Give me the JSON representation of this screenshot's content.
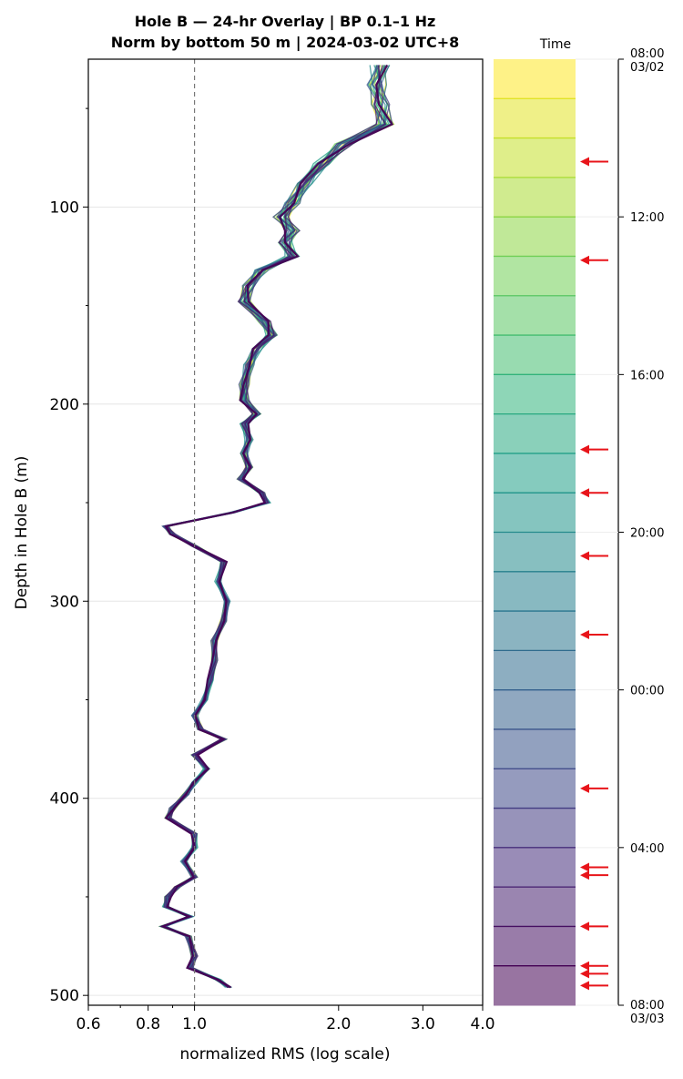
{
  "chart_data": {
    "type": "line",
    "title_line1": "Hole B — 24-hr Overlay  |  BP 0.1–1 Hz",
    "title_line2": "Norm by bottom 50 m  |  2024-03-02 UTC+8",
    "xlabel": "normalized RMS  (log scale)",
    "ylabel": "Depth in Hole B (m)",
    "x_scale": "log",
    "xlim": [
      0.6,
      4.0
    ],
    "ylim": [
      505,
      25
    ],
    "x_ticks": [
      {
        "value": 0.6,
        "label": "0.6"
      },
      {
        "value": 0.8,
        "label": "0.8"
      },
      {
        "value": 1.0,
        "label": "1.0"
      },
      {
        "value": 2.0,
        "label": "2.0"
      },
      {
        "value": 3.0,
        "label": "3.0"
      },
      {
        "value": 4.0,
        "label": "4.0"
      }
    ],
    "y_ticks": [
      {
        "value": 100,
        "label": "100"
      },
      {
        "value": 200,
        "label": "200"
      },
      {
        "value": 300,
        "label": "300"
      },
      {
        "value": 400,
        "label": "400"
      },
      {
        "value": 500,
        "label": "500"
      }
    ],
    "reference_line_x": 1.0,
    "grid": "horizontal",
    "profile_depths": [
      28,
      38,
      48,
      58,
      68,
      78,
      88,
      98,
      105,
      112,
      118,
      125,
      132,
      140,
      148,
      158,
      165,
      172,
      180,
      190,
      198,
      205,
      210,
      218,
      225,
      232,
      238,
      245,
      250,
      255,
      262,
      266,
      272,
      280,
      290,
      300,
      310,
      320,
      330,
      340,
      350,
      358,
      365,
      370,
      378,
      385,
      392,
      398,
      405,
      410,
      418,
      425,
      432,
      440,
      445,
      450,
      455,
      460,
      465,
      470,
      480,
      486,
      492,
      496
    ],
    "profile_values": [
      2.45,
      2.4,
      2.45,
      2.5,
      2.05,
      1.85,
      1.7,
      1.6,
      1.52,
      1.6,
      1.55,
      1.6,
      1.38,
      1.3,
      1.27,
      1.4,
      1.45,
      1.35,
      1.3,
      1.27,
      1.27,
      1.35,
      1.27,
      1.3,
      1.27,
      1.3,
      1.25,
      1.38,
      1.42,
      1.2,
      0.87,
      0.9,
      1.0,
      1.15,
      1.12,
      1.17,
      1.15,
      1.1,
      1.1,
      1.08,
      1.05,
      1.0,
      1.03,
      1.15,
      1.0,
      1.06,
      1.0,
      0.96,
      0.9,
      0.88,
      1.0,
      1.0,
      0.95,
      1.0,
      0.92,
      0.88,
      0.87,
      0.98,
      0.86,
      0.97,
      1.0,
      0.98,
      1.12,
      1.18
    ],
    "colorbar": {
      "label": "Time",
      "start": "08:00\n03/02",
      "end": "08:00\n03/03",
      "tick_labels": [
        "08:00\n03/02",
        "12:00",
        "16:00",
        "20:00",
        "00:00",
        "04:00",
        "08:00\n03/03"
      ],
      "bands": 24,
      "palette": [
        "#fde725",
        "#b5de2b",
        "#6ece58",
        "#35b779",
        "#1f9e89",
        "#26828e",
        "#31688e",
        "#3e4989",
        "#482878",
        "#440154"
      ]
    },
    "arrow_hours": [
      2.6,
      5.1,
      9.9,
      11.0,
      12.6,
      14.6,
      18.5,
      20.5,
      20.7,
      22.0,
      23.0,
      23.2,
      23.5
    ],
    "arrow_color": "#e8141a"
  }
}
